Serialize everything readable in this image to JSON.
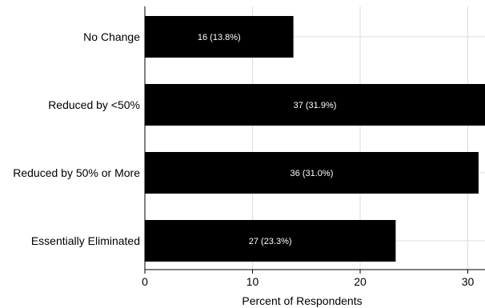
{
  "chart_data": {
    "type": "bar",
    "orientation": "horizontal",
    "categories": [
      "No Change",
      "Reduced by <50%",
      "Reduced by 50% or More",
      "Essentially Eliminated"
    ],
    "values": [
      13.8,
      31.9,
      31.0,
      23.3
    ],
    "data_labels": [
      "16 (13.8%)",
      "37 (31.9%)",
      "36 (31.0%)",
      "27 (23.3%)"
    ],
    "xlabel": "Percent of Respondents",
    "ylabel": "",
    "xlim": [
      0,
      31.6
    ],
    "x_ticks": [
      0,
      10,
      20,
      30
    ],
    "x_tick_labels": [
      "0",
      "10",
      "20",
      "30"
    ],
    "grid": true,
    "bar_color": "#000000",
    "label_color": "#ffffff",
    "grid_color": "#dcdcdc"
  }
}
